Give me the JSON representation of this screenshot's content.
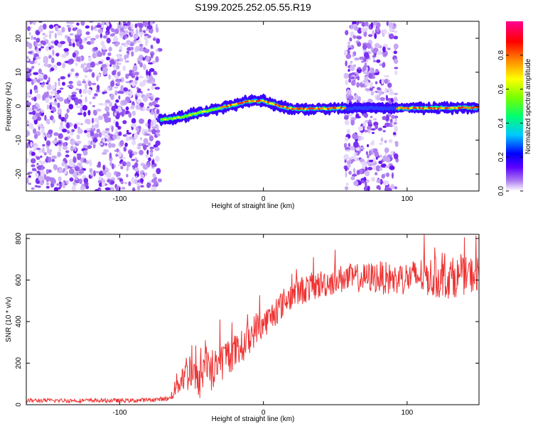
{
  "chart_data": [
    {
      "type": "heatmap",
      "title": "S199.2025.252.05.55.R19",
      "xlabel": "Height of straight line (km)",
      "ylabel": "Frequency (Hz)",
      "xlim": [
        -165,
        150
      ],
      "ylim": [
        -25,
        25
      ],
      "xticks": [
        -100,
        0,
        100
      ],
      "xtick_labels": [
        "-100",
        "0",
        "100"
      ],
      "yticks": [
        -20,
        -10,
        0,
        10,
        20
      ],
      "ytick_labels": [
        "-20",
        "-10",
        "0",
        "10",
        "20"
      ],
      "noise_regions_km": [
        [
          -165,
          -72
        ],
        [
          57,
          93
        ]
      ],
      "trace_x_km": [
        -72,
        -60,
        -50,
        -40,
        -30,
        -20,
        -10,
        0,
        10,
        20,
        30,
        40,
        50,
        60,
        70,
        80,
        90,
        100,
        110,
        120,
        130,
        140,
        150
      ],
      "trace_freq_hz": [
        -4,
        -3.5,
        -2.5,
        -1.5,
        -0.5,
        0.5,
        1.5,
        1.5,
        0.2,
        -0.8,
        -0.8,
        -0.7,
        -0.6,
        -0.6,
        -0.5,
        -0.6,
        -0.6,
        -0.6,
        -0.5,
        -0.6,
        -0.5,
        -0.4,
        -0.5
      ],
      "colorbar": {
        "label": "Normalized spectral amplitude",
        "ticks": [
          0.0,
          0.2,
          0.4,
          0.6,
          0.8
        ],
        "tick_labels": [
          "0.0",
          "0.2",
          "0.4",
          "0.6",
          "0.8"
        ],
        "range": [
          0,
          1
        ],
        "colors": [
          "#ffffff",
          "#ad7cf0",
          "#5b00ff",
          "#0000ff",
          "#00c8ff",
          "#00ff70",
          "#78ff00",
          "#ffff00",
          "#ff8800",
          "#ff0000",
          "#ff0090"
        ]
      }
    },
    {
      "type": "line",
      "xlabel": "Height of straight line (km)",
      "ylabel": "SNR (10 * v/v)",
      "xlim": [
        -165,
        150
      ],
      "ylim": [
        0,
        820
      ],
      "xticks": [
        -100,
        0,
        100
      ],
      "xtick_labels": [
        "-100",
        "0",
        "100"
      ],
      "yticks": [
        0,
        200,
        400,
        600,
        800
      ],
      "ytick_labels": [
        "0",
        "200",
        "400",
        "600",
        "800"
      ],
      "series": [
        {
          "name": "SNR",
          "color": "#ee3333",
          "x": [
            -165,
            -150,
            -130,
            -110,
            -90,
            -75,
            -65,
            -60,
            -55,
            -50,
            -45,
            -40,
            -35,
            -30,
            -25,
            -20,
            -15,
            -10,
            -5,
            0,
            5,
            10,
            15,
            20,
            30,
            40,
            50,
            60,
            70,
            80,
            90,
            100,
            110,
            120,
            130,
            140,
            150
          ],
          "values": [
            20,
            20,
            20,
            20,
            20,
            25,
            30,
            100,
            150,
            170,
            90,
            230,
            150,
            200,
            240,
            250,
            280,
            320,
            370,
            390,
            420,
            460,
            500,
            530,
            560,
            580,
            600,
            610,
            610,
            615,
            600,
            610,
            620,
            610,
            610,
            620,
            630
          ],
          "spread": [
            10,
            10,
            10,
            10,
            10,
            10,
            12,
            60,
            90,
            110,
            80,
            140,
            110,
            100,
            90,
            90,
            80,
            80,
            80,
            70,
            70,
            70,
            70,
            70,
            70,
            70,
            70,
            70,
            70,
            80,
            80,
            80,
            90,
            100,
            100,
            90,
            90
          ]
        }
      ]
    }
  ]
}
